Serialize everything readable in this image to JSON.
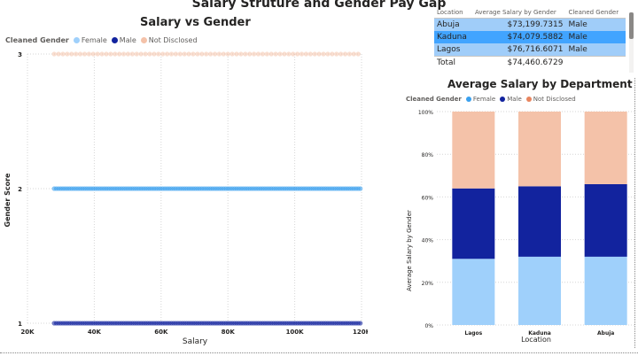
{
  "report_title": "Salary Struture and Gender Pay Gap",
  "colors": {
    "female": "#9fd0fb",
    "female_scatter": "#3aa0ee",
    "male": "#12239e",
    "not_disclosed": "#f4c2a9",
    "not_disclosed_legend": "#e8855f",
    "selected_row": "#41a4ff",
    "light_row": "#a0cdf9"
  },
  "scatter": {
    "title": "Salary vs Gender",
    "legend_title": "Cleaned Gender",
    "legend": [
      {
        "label": "Female",
        "color": "#9fd0fb"
      },
      {
        "label": "Male",
        "color": "#12239e"
      },
      {
        "label": "Not Disclosed",
        "color": "#f4c2a9"
      }
    ],
    "y_axis_title": "Gender Score",
    "x_axis_title": "Salary",
    "x_ticks": [
      "20K",
      "40K",
      "60K",
      "80K",
      "100K",
      "120K"
    ],
    "y_ticks": [
      "1",
      "2",
      "3"
    ]
  },
  "table": {
    "columns": [
      "Location",
      "Average Salary by Gender",
      "Cleaned Gender"
    ],
    "rows": [
      {
        "location": "Abuja",
        "avg": "$73,199.7315",
        "gender": "Male"
      },
      {
        "location": "Kaduna",
        "avg": "$74,079.5882",
        "gender": "Male"
      },
      {
        "location": "Lagos",
        "avg": "$76,716.6071",
        "gender": "Male"
      }
    ],
    "total_label": "Total",
    "total_value": "$74,460.6729"
  },
  "bar": {
    "title": "Average Salary by Department",
    "legend_title": "Cleaned Gender",
    "legend": [
      {
        "label": "Female",
        "color": "#3aa0ee"
      },
      {
        "label": "Male",
        "color": "#12239e"
      },
      {
        "label": "Not Disclosed",
        "color": "#e8855f"
      }
    ],
    "y_axis_title": "Average Salary by Gender",
    "x_axis_title": "Location",
    "y_ticks": [
      "0%",
      "20%",
      "40%",
      "60%",
      "80%",
      "100%"
    ]
  },
  "chart_data": [
    {
      "type": "scatter",
      "title": "Salary vs Gender",
      "xlabel": "Salary",
      "ylabel": "Gender Score",
      "xlim": [
        20000,
        120000
      ],
      "ylim": [
        1,
        3
      ],
      "grid": true,
      "legend_placement": "top-left",
      "series": [
        {
          "name": "Female",
          "y": 2,
          "x_range": [
            28000,
            120000
          ]
        },
        {
          "name": "Male",
          "y": 1,
          "x_range": [
            28000,
            120000
          ]
        },
        {
          "name": "Not Disclosed",
          "y": 3,
          "x_range": [
            28000,
            120000
          ]
        }
      ]
    },
    {
      "type": "bar",
      "stacked": true,
      "title": "Average Salary by Department",
      "xlabel": "Location",
      "ylabel": "Average Salary by Gender",
      "ylim": [
        0,
        100
      ],
      "legend_placement": "top-left",
      "categories": [
        "Lagos",
        "Kaduna",
        "Abuja"
      ],
      "series": [
        {
          "name": "Female",
          "values": [
            31,
            32,
            32
          ]
        },
        {
          "name": "Male",
          "values": [
            33,
            33,
            34
          ]
        },
        {
          "name": "Not Disclosed",
          "values": [
            36,
            35,
            34
          ]
        }
      ]
    }
  ]
}
